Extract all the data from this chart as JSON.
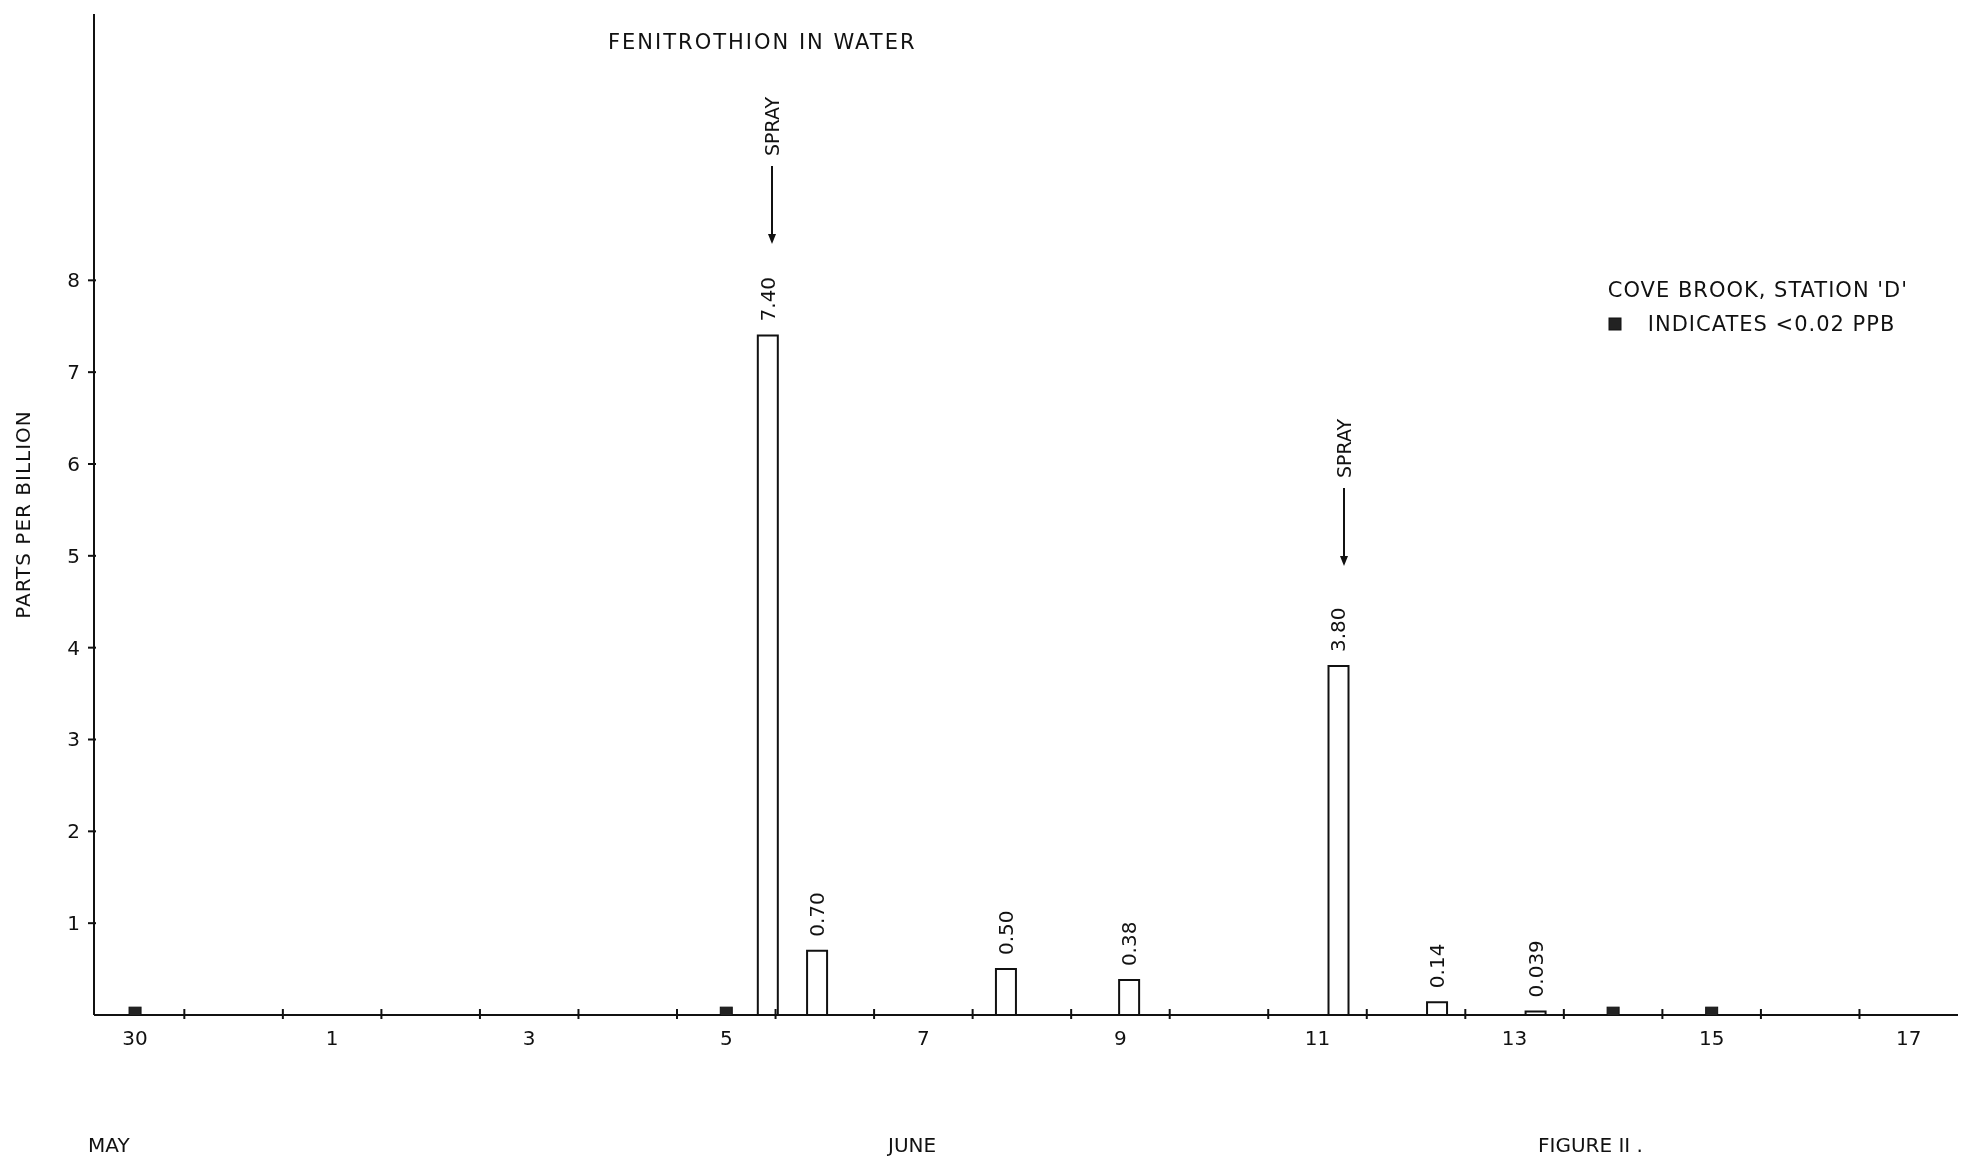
{
  "chart_data": {
    "type": "bar",
    "title": "FENITROTHION IN WATER",
    "ylabel": "PARTS PER BILLION",
    "legend_title": "COVE BROOK, STATION 'D'",
    "x": [
      "--06-05T10:00",
      "--06-05T22:00",
      "--06-07T20:00",
      "--06-09T02:00",
      "--06-11T05:00",
      "--06-12T05:00",
      "--06-13T05:00"
    ],
    "series": [
      {
        "color": "#ffffff",
        "values": [
          7.4,
          0.7,
          0.5,
          0.38,
          3.8,
          0.14,
          0.039
        ],
        "value_labels": [
          "7.40",
          "0.70",
          "0.50",
          "0.38",
          "3.80",
          "0.14",
          "0.039"
        ]
      },
      {
        "type": "scatter",
        "name": "INDICATES <0.02 PPB",
        "color": "#222222",
        "x": [
          "--05-30",
          "--06-05",
          "--06-14",
          "--06-15"
        ],
        "values": [
          0.02,
          0.02,
          0.02,
          0.02
        ],
        "marker": "square"
      }
    ],
    "xlim": [
      "--05-29T14:00",
      "--06-17T12:00"
    ],
    "xticks": [
      {
        "value": "--05-30",
        "label": "30"
      },
      {
        "value": "--06-01",
        "label": "1"
      },
      {
        "value": "--06-03",
        "label": "3"
      },
      {
        "value": "--06-05",
        "label": "5"
      },
      {
        "value": "--06-07",
        "label": "7"
      },
      {
        "value": "--06-09",
        "label": "9"
      },
      {
        "value": "--06-11",
        "label": "11"
      },
      {
        "value": "--06-13",
        "label": "13"
      },
      {
        "value": "--06-15",
        "label": "15"
      },
      {
        "value": "--06-17",
        "label": "17"
      },
      {
        "value": "--05-30T12:00",
        "label": null
      },
      {
        "value": "--05-31T12:00",
        "label": null
      },
      {
        "value": "--06-01T12:00",
        "label": null
      },
      {
        "value": "--06-02T12:00",
        "label": null
      },
      {
        "value": "--06-03T12:00",
        "label": null
      },
      {
        "value": "--06-04T12:00",
        "label": null
      },
      {
        "value": "--06-05T12:00",
        "label": null
      },
      {
        "value": "--06-06T12:00",
        "label": null
      },
      {
        "value": "--06-07T12:00",
        "label": null
      },
      {
        "value": "--06-08T12:00",
        "label": null
      },
      {
        "value": "--06-09T12:00",
        "label": null
      },
      {
        "value": "--06-10T12:00",
        "label": null
      },
      {
        "value": "--06-11T12:00",
        "label": null
      },
      {
        "value": "--06-12T12:00",
        "label": null
      },
      {
        "value": "--06-13T12:00",
        "label": null
      },
      {
        "value": "--06-14T12:00",
        "label": null
      },
      {
        "value": "--06-15T12:00",
        "label": null
      },
      {
        "value": "--06-16T12:00",
        "label": null
      }
    ],
    "ylim": [
      0,
      10.9
    ],
    "yticks": [
      1,
      2,
      3,
      4,
      5,
      6,
      7,
      8
    ],
    "grid": false,
    "legend": "top right",
    "annotations": [
      "SPRAY",
      "SPRAY",
      "MAY",
      "JUNE",
      "FIGURE II ."
    ]
  }
}
